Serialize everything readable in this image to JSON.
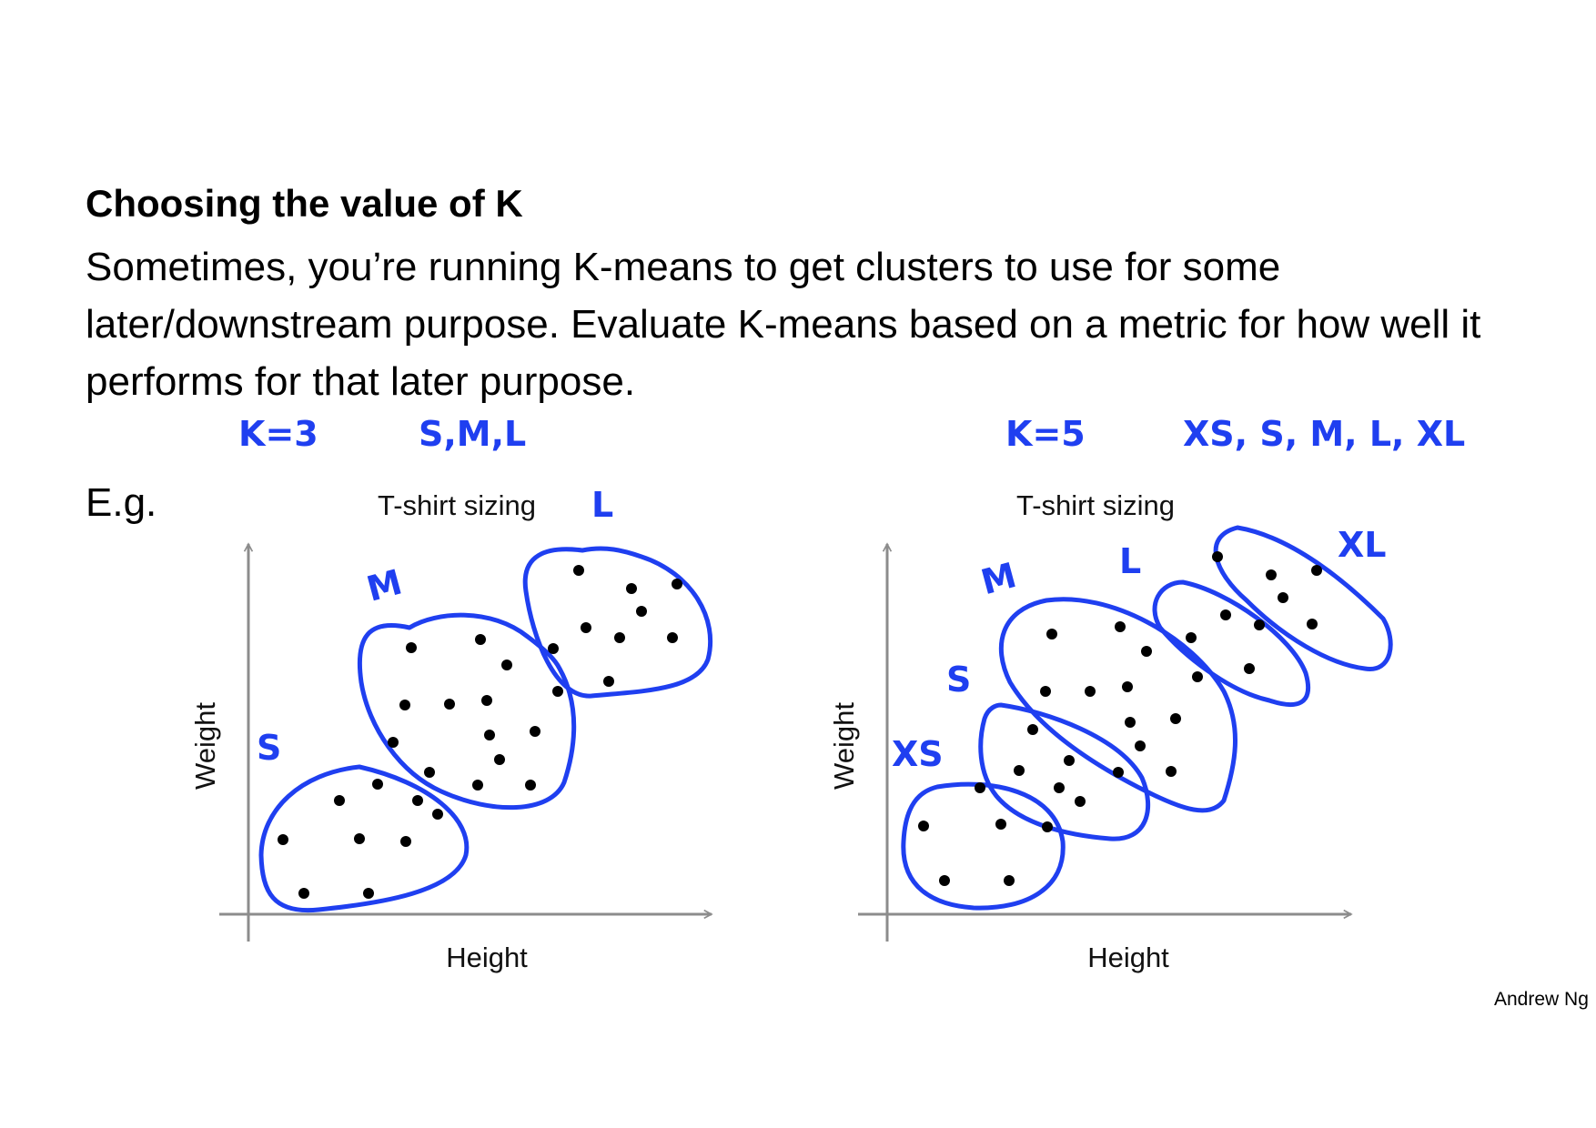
{
  "slide": {
    "title": "Choosing the value of K",
    "body": "Sometimes, you’re running K-means to get clusters to use for some later/downstream purpose. Evaluate K-means based on a metric for how well it performs for that later purpose.",
    "example_label": "E.g.",
    "footer": "Andrew Ng"
  },
  "colors": {
    "ink": "#1f3ff0",
    "axis": "#8c8c8c",
    "dots": "#000000"
  },
  "left_panel": {
    "annotation_k": "K=3",
    "annotation_sizes": "S,M,L",
    "title": "T-shirt sizing",
    "xlabel": "Height",
    "ylabel": "Weight",
    "cluster_labels": [
      "S",
      "M",
      "L"
    ]
  },
  "right_panel": {
    "annotation_k": "K=5",
    "annotation_sizes": "XS, S, M, L, XL",
    "title": "T-shirt sizing",
    "xlabel": "Height",
    "ylabel": "Weight",
    "cluster_labels": [
      "XS",
      "S",
      "M",
      "L",
      "XL"
    ]
  }
}
